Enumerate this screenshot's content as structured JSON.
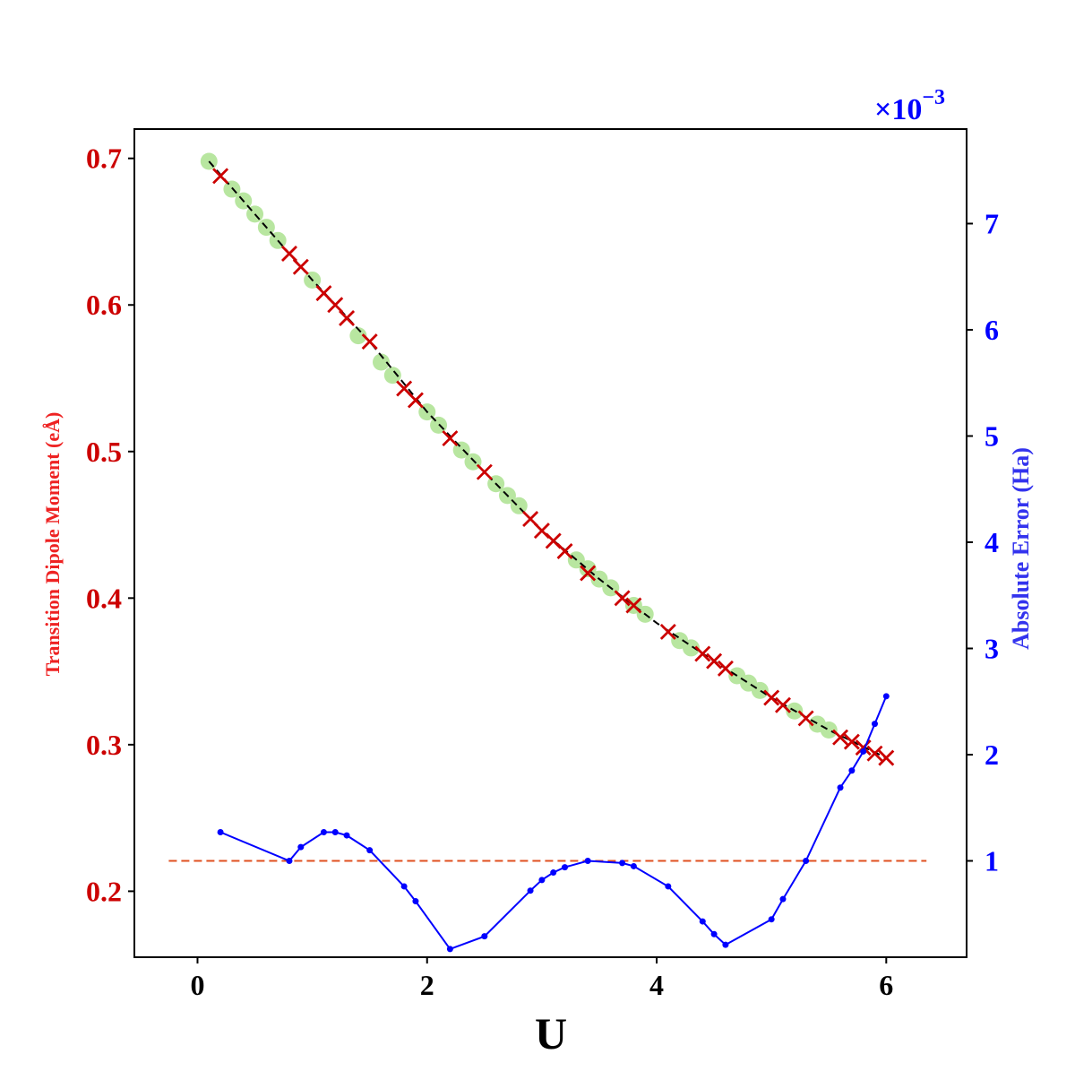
{
  "chart_data": {
    "type": "line",
    "xlabel": "U",
    "y_left_label": "Transition Dipole Moment (eÅ)",
    "y_right_label": "Absolute Error (Ha)",
    "right_axis_multiplier": "×10",
    "right_axis_exponent": "−3",
    "xlim": [
      -0.55,
      6.7
    ],
    "y_left_lim": [
      0.155,
      0.72
    ],
    "y_right_lim": [
      0.093,
      7.89
    ],
    "x_ticks": [
      0,
      2,
      4,
      6
    ],
    "y_left_ticks": [
      0.2,
      0.3,
      0.4,
      0.5,
      0.6,
      0.7
    ],
    "y_right_ticks": [
      1,
      2,
      3,
      4,
      5,
      6,
      7
    ],
    "grid": false,
    "colors": {
      "left_axis": "#cc0000",
      "right_axis": "#0000ff",
      "train_points": "#b8e6a0",
      "test_points": "#cc0000",
      "reference_line": "#000000",
      "error_line": "#0000ff",
      "threshold_line": "#e05020"
    },
    "series": [
      {
        "axis": "left",
        "style": "dashed-line",
        "x": [
          0.1,
          0.5,
          1.0,
          1.5,
          2.0,
          2.5,
          3.0,
          3.5,
          4.0,
          4.5,
          5.0,
          5.5,
          6.0
        ],
        "y": [
          0.698,
          0.662,
          0.617,
          0.575,
          0.527,
          0.486,
          0.446,
          0.413,
          0.383,
          0.357,
          0.332,
          0.31,
          0.291
        ]
      },
      {
        "axis": "left",
        "style": "circle-markers",
        "x": [
          0.1,
          0.3,
          0.4,
          0.5,
          0.6,
          0.7,
          1.0,
          1.4,
          1.6,
          1.7,
          2.0,
          2.1,
          2.3,
          2.4,
          2.6,
          2.7,
          2.8,
          3.3,
          3.4,
          3.5,
          3.6,
          3.8,
          3.9,
          4.2,
          4.3,
          4.7,
          4.8,
          4.9,
          5.2,
          5.4,
          5.5
        ],
        "y": [
          0.698,
          0.679,
          0.671,
          0.662,
          0.653,
          0.644,
          0.617,
          0.579,
          0.561,
          0.552,
          0.527,
          0.518,
          0.501,
          0.493,
          0.478,
          0.47,
          0.463,
          0.426,
          0.42,
          0.413,
          0.407,
          0.395,
          0.389,
          0.371,
          0.366,
          0.347,
          0.342,
          0.337,
          0.323,
          0.314,
          0.31
        ]
      },
      {
        "axis": "left",
        "style": "x-markers",
        "x": [
          0.2,
          0.8,
          0.9,
          1.1,
          1.2,
          1.3,
          1.5,
          1.8,
          1.9,
          2.2,
          2.5,
          2.9,
          3.0,
          3.1,
          3.2,
          3.4,
          3.7,
          3.8,
          4.1,
          4.4,
          4.5,
          4.6,
          5.0,
          5.1,
          5.3,
          5.6,
          5.7,
          5.8,
          5.9,
          6.0
        ],
        "y": [
          0.688,
          0.635,
          0.626,
          0.608,
          0.6,
          0.591,
          0.575,
          0.543,
          0.535,
          0.509,
          0.486,
          0.454,
          0.446,
          0.439,
          0.432,
          0.417,
          0.4,
          0.395,
          0.377,
          0.362,
          0.357,
          0.352,
          0.332,
          0.327,
          0.318,
          0.305,
          0.302,
          0.298,
          0.294,
          0.291
        ]
      },
      {
        "axis": "right",
        "style": "line-with-dots",
        "x": [
          0.2,
          0.8,
          0.9,
          1.1,
          1.2,
          1.3,
          1.5,
          1.8,
          1.9,
          2.2,
          2.5,
          2.9,
          3.0,
          3.1,
          3.2,
          3.4,
          3.7,
          3.8,
          4.1,
          4.4,
          4.5,
          4.6,
          5.0,
          5.1,
          5.3,
          5.6,
          5.7,
          5.8,
          5.9,
          6.0
        ],
        "y": [
          1.27,
          1.0,
          1.13,
          1.27,
          1.27,
          1.24,
          1.1,
          0.76,
          0.62,
          0.17,
          0.29,
          0.72,
          0.82,
          0.89,
          0.94,
          1.0,
          0.98,
          0.95,
          0.76,
          0.43,
          0.31,
          0.21,
          0.45,
          0.64,
          1.0,
          1.69,
          1.85,
          2.03,
          2.29,
          2.55
        ]
      },
      {
        "axis": "right",
        "style": "dashed-line",
        "x": [
          -0.25,
          6.35
        ],
        "y": [
          1.0,
          1.0
        ]
      }
    ]
  }
}
